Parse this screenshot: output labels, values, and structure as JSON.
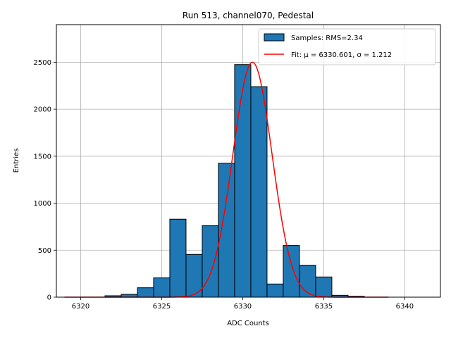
{
  "chart_data": {
    "type": "bar",
    "title": "Run 513, channel070, Pedestal",
    "xlabel": "ADC Counts",
    "ylabel": "Entries",
    "xlim": [
      6318.5,
      6342.2
    ],
    "ylim": [
      0,
      2900
    ],
    "xticks": [
      6320,
      6325,
      6330,
      6335,
      6340
    ],
    "yticks": [
      0,
      500,
      1000,
      1500,
      2000,
      2500
    ],
    "grid": true,
    "legend_position": "top-right",
    "bin_width": 1,
    "bins": [
      {
        "x": 6319,
        "value": 0
      },
      {
        "x": 6320,
        "value": 0
      },
      {
        "x": 6321,
        "value": 0
      },
      {
        "x": 6322,
        "value": 15
      },
      {
        "x": 6323,
        "value": 30
      },
      {
        "x": 6324,
        "value": 100
      },
      {
        "x": 6325,
        "value": 205
      },
      {
        "x": 6326,
        "value": 830
      },
      {
        "x": 6327,
        "value": 455
      },
      {
        "x": 6328,
        "value": 760
      },
      {
        "x": 6329,
        "value": 1425
      },
      {
        "x": 6330,
        "value": 2475
      },
      {
        "x": 6331,
        "value": 2240
      },
      {
        "x": 6332,
        "value": 140
      },
      {
        "x": 6333,
        "value": 550
      },
      {
        "x": 6334,
        "value": 340
      },
      {
        "x": 6335,
        "value": 215
      },
      {
        "x": 6336,
        "value": 20
      },
      {
        "x": 6337,
        "value": 10
      },
      {
        "x": 6338,
        "value": 0
      },
      {
        "x": 6339,
        "value": 0
      },
      {
        "x": 6340,
        "value": 0
      }
    ],
    "fit": {
      "type": "gaussian",
      "mu": 6330.601,
      "sigma": 1.212,
      "amplitude": 2500,
      "x_range": [
        6319,
        6339
      ]
    },
    "legend": [
      {
        "label": "Samples: RMS=2.34",
        "kind": "patch"
      },
      {
        "label": "Fit: μ = 6330.601, σ = 1.212",
        "kind": "line"
      }
    ],
    "colors": {
      "bar_fill": "#1f77b4",
      "bar_edge": "#000000",
      "fit_line": "#ff0000",
      "grid": "#b0b0b0"
    }
  }
}
